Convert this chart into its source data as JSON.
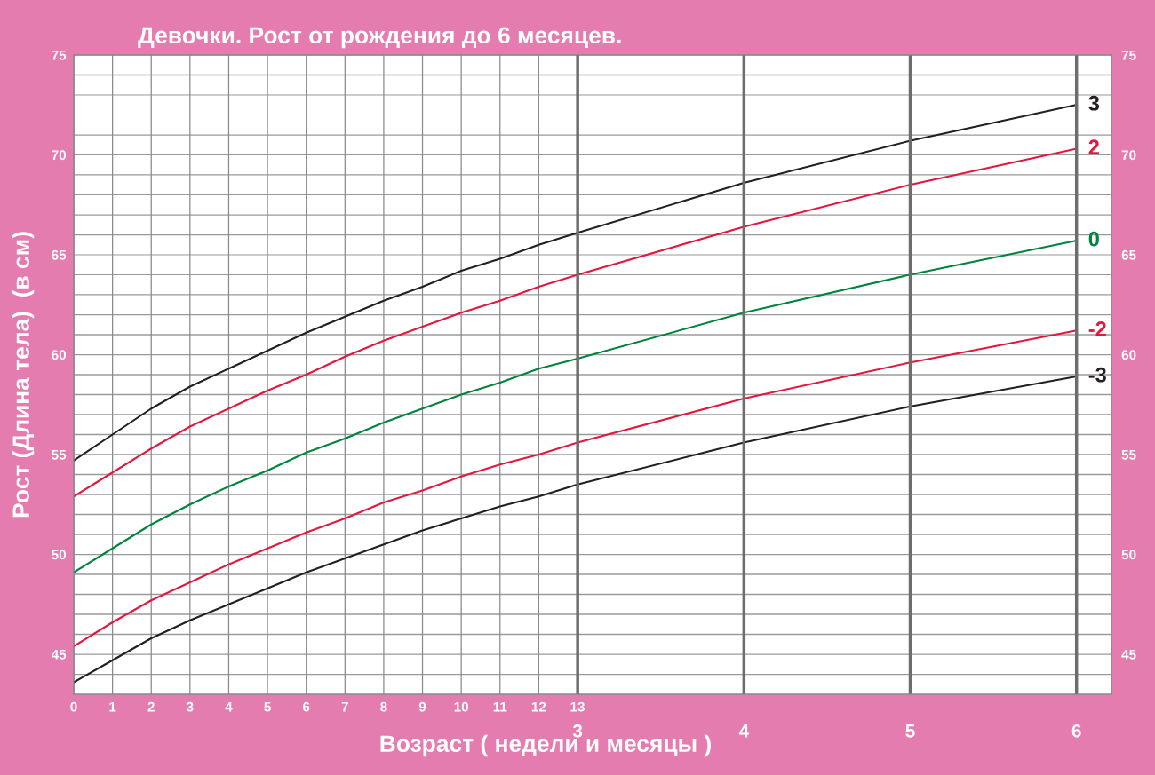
{
  "chart_data": {
    "type": "line",
    "title": "Девочки. Рост от рождения до 6 месяцев.",
    "xlabel": "Возраст ( недели и месяцы )",
    "ylabel": "Рост (Длина тела)  (в см)",
    "x": [
      0,
      1,
      2,
      3,
      4,
      5,
      6,
      7,
      8,
      9,
      10,
      11,
      12,
      13,
      17.29,
      21.57,
      25.86
    ],
    "series": [
      {
        "name": "3",
        "color": "#231f20",
        "values": [
          54.7,
          56.0,
          57.3,
          58.4,
          59.3,
          60.2,
          61.1,
          61.9,
          62.7,
          63.4,
          64.2,
          64.8,
          65.5,
          66.1,
          68.6,
          70.7,
          72.5
        ]
      },
      {
        "name": "2",
        "color": "#e3173e",
        "values": [
          52.9,
          54.1,
          55.3,
          56.4,
          57.3,
          58.2,
          59.0,
          59.9,
          60.7,
          61.4,
          62.1,
          62.7,
          63.4,
          64.0,
          66.4,
          68.5,
          70.3
        ]
      },
      {
        "name": "0",
        "color": "#00843d",
        "values": [
          49.1,
          50.3,
          51.5,
          52.5,
          53.4,
          54.2,
          55.1,
          55.8,
          56.6,
          57.3,
          58.0,
          58.6,
          59.3,
          59.8,
          62.1,
          64.0,
          65.7
        ]
      },
      {
        "name": "-2",
        "color": "#e3173e",
        "values": [
          45.4,
          46.6,
          47.7,
          48.6,
          49.5,
          50.3,
          51.1,
          51.8,
          52.6,
          53.2,
          53.9,
          54.5,
          55.0,
          55.6,
          57.8,
          59.6,
          61.2
        ]
      },
      {
        "name": "-3",
        "color": "#231f20",
        "values": [
          43.6,
          44.7,
          45.8,
          46.7,
          47.5,
          48.3,
          49.1,
          49.8,
          50.5,
          51.2,
          51.8,
          52.4,
          52.9,
          53.5,
          55.6,
          57.4,
          58.9
        ]
      }
    ],
    "xlim": [
      0,
      26.78
    ],
    "xticks": [
      0,
      1,
      2,
      3,
      4,
      5,
      6,
      7,
      8,
      9,
      10,
      11,
      12,
      13
    ],
    "x2lim": [
      -0.03,
      6.21
    ],
    "x2ticks": [
      3,
      4,
      5,
      6
    ],
    "ylim": [
      43,
      75
    ],
    "yticks": [
      {
        "value": 44,
        "label": null
      },
      45,
      {
        "value": 46,
        "label": null
      },
      {
        "value": 47,
        "label": null
      },
      {
        "value": 48,
        "label": null
      },
      {
        "value": 49,
        "label": null
      },
      50,
      {
        "value": 51,
        "label": null
      },
      {
        "value": 52,
        "label": null
      },
      {
        "value": 53,
        "label": null
      },
      {
        "value": 54,
        "label": null
      },
      55,
      {
        "value": 56,
        "label": null
      },
      {
        "value": 57,
        "label": null
      },
      {
        "value": 58,
        "label": null
      },
      {
        "value": 59,
        "label": null
      },
      60,
      {
        "value": 61,
        "label": null
      },
      {
        "value": 62,
        "label": null
      },
      {
        "value": 63,
        "label": null
      },
      {
        "value": 64,
        "label": null
      },
      65,
      {
        "value": 66,
        "label": null
      },
      {
        "value": 67,
        "label": null
      },
      {
        "value": 68,
        "label": null
      },
      {
        "value": 69,
        "label": null
      },
      70,
      {
        "value": 71,
        "label": null
      },
      {
        "value": 72,
        "label": null
      },
      {
        "value": 73,
        "label": null
      },
      {
        "value": 74,
        "label": null
      },
      75
    ],
    "y2lim": [
      43,
      75
    ],
    "y2ticks": [
      45,
      50,
      55,
      60,
      65,
      70,
      75
    ],
    "grid": true,
    "legend": false,
    "marker": "none",
    "line_style": "solid"
  }
}
